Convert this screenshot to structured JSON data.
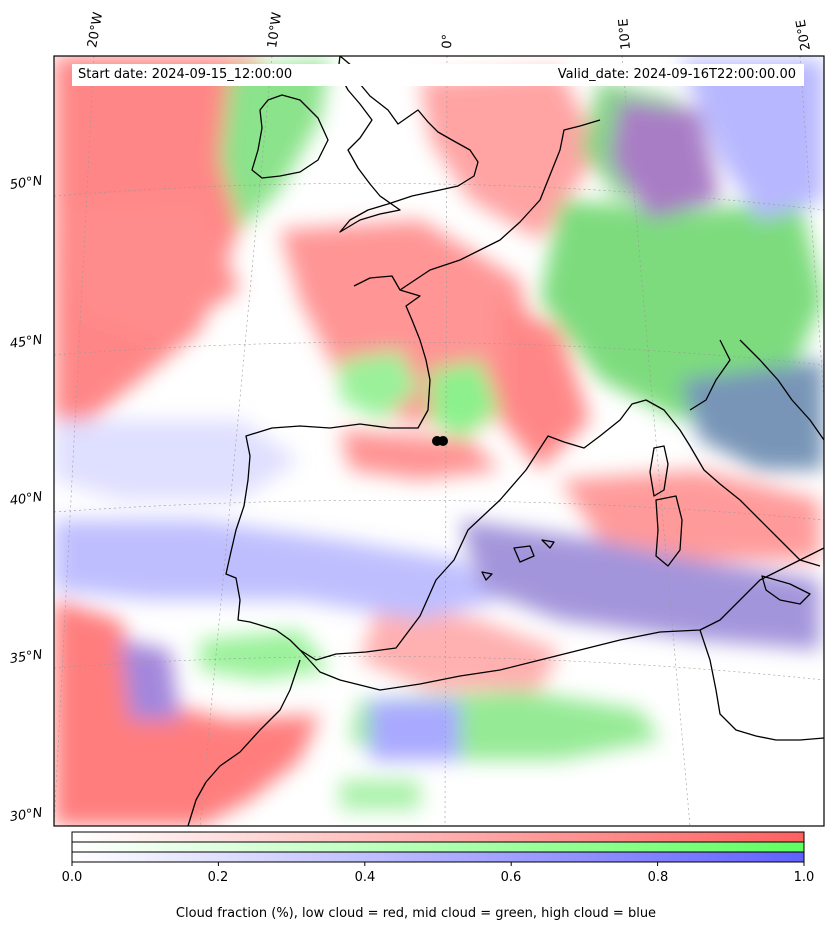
{
  "header": {
    "start_date": "Start date: 2024-09-15_12:00:00",
    "valid_date": "Valid_date: 2024-09-16T22:00:00.00"
  },
  "longitude_labels": [
    "20°W",
    "10°W",
    "0°",
    "10°E",
    "20°E"
  ],
  "latitude_labels": [
    "50°N",
    "45°N",
    "40°N",
    "35°N",
    "30°N"
  ],
  "colorbar": {
    "ticks": [
      "0.0",
      "0.2",
      "0.4",
      "0.6",
      "0.8",
      "1.0"
    ],
    "caption": "Cloud fraction (%), low cloud = red, mid cloud = green, high cloud = blue",
    "bands": [
      {
        "layer": "low",
        "color": "#ff6060"
      },
      {
        "layer": "mid",
        "color": "#60ff60"
      },
      {
        "layer": "high",
        "color": "#6060ff"
      }
    ]
  },
  "legend_colors": {
    "low_cloud": "#ff7070",
    "mid_cloud": "#6fe66f",
    "high_cloud": "#8a8aff",
    "coastline": "#000000"
  },
  "marker": {
    "description_visible": false,
    "color": "#000000"
  }
}
